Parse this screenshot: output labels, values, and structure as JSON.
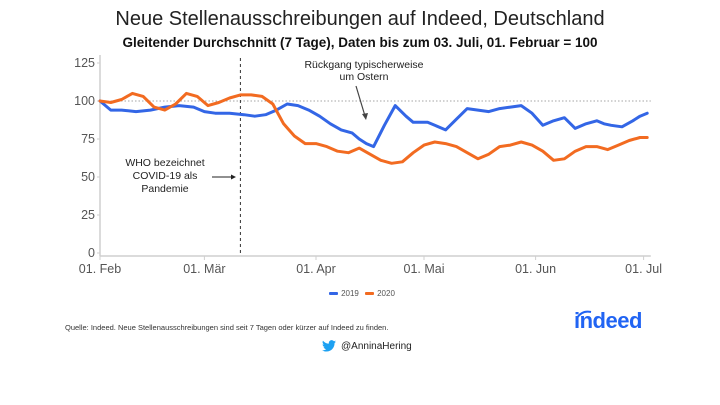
{
  "header": {
    "title": "Neue Stellenausschreibungen auf Indeed, Deutschland",
    "subtitle": "Gleitender Durchschnitt (7 Tage), Daten bis zum 03. Juli, 01. Februar = 100"
  },
  "footer": {
    "source": "Quelle: Indeed. Neue Stellenausschreibungen sind seit 7 Tagen oder kürzer auf Indeed zu finden.",
    "twitter_icon": "twitter-bird-icon",
    "twitter_handle": "@AnninaHering",
    "logo_text": "indeed"
  },
  "chart_data": {
    "type": "line",
    "title": "Neue Stellenausschreibungen auf Indeed, Deutschland",
    "subtitle": "Gleitender Durchschnitt (7 Tage), Daten bis zum 03. Juli, 01. Februar = 100",
    "xlabel": "",
    "ylabel": "",
    "x_unit": "days since 01. Feb",
    "xlim": [
      0,
      153
    ],
    "ylim": [
      0,
      125
    ],
    "yticks": [
      0,
      25,
      50,
      75,
      100,
      125
    ],
    "xticks": [
      {
        "day": 0,
        "label": "01. Feb"
      },
      {
        "day": 29,
        "label": "01. Mär"
      },
      {
        "day": 60,
        "label": "01. Apr"
      },
      {
        "day": 90,
        "label": "01. Mai"
      },
      {
        "day": 121,
        "label": "01. Jun"
      },
      {
        "day": 151,
        "label": "01. Jul"
      }
    ],
    "grid": false,
    "reference_line": {
      "y": 100,
      "style": "dotted"
    },
    "legend": {
      "placement": "bottom-center",
      "entries": [
        "2019",
        "2020"
      ]
    },
    "colors": {
      "2019": "#3366e6",
      "2020": "#f26b21"
    },
    "series": [
      {
        "name": "2019",
        "x": [
          0,
          3,
          6,
          10,
          14,
          18,
          22,
          26,
          29,
          32,
          36,
          40,
          43,
          46,
          49,
          52,
          55,
          58,
          61,
          64,
          67,
          70,
          72,
          74,
          76,
          79,
          82,
          85,
          87,
          89,
          91,
          93,
          96,
          99,
          102,
          105,
          108,
          111,
          114,
          117,
          120,
          123,
          126,
          129,
          132,
          135,
          138,
          140,
          142,
          145,
          148,
          150,
          152
        ],
        "values": [
          100,
          94,
          94,
          93,
          94,
          96,
          97,
          96,
          93,
          92,
          92,
          91,
          90,
          91,
          94,
          98,
          97,
          94,
          90,
          85,
          81,
          79,
          75,
          72,
          70,
          84,
          97,
          90,
          86,
          86,
          86,
          84,
          81,
          88,
          95,
          94,
          93,
          95,
          96,
          97,
          92,
          84,
          87,
          89,
          82,
          85,
          87,
          85,
          84,
          83,
          87,
          90,
          92
        ]
      },
      {
        "name": "2020",
        "x": [
          0,
          3,
          6,
          9,
          12,
          15,
          18,
          21,
          24,
          27,
          30,
          33,
          36,
          39,
          42,
          45,
          48,
          51,
          54,
          57,
          60,
          63,
          66,
          69,
          72,
          75,
          78,
          81,
          84,
          87,
          90,
          93,
          96,
          99,
          102,
          105,
          108,
          111,
          114,
          117,
          120,
          123,
          126,
          129,
          132,
          135,
          138,
          141,
          144,
          147,
          150,
          152
        ],
        "values": [
          100,
          99,
          101,
          105,
          103,
          96,
          94,
          98,
          105,
          103,
          97,
          99,
          102,
          104,
          104,
          103,
          98,
          85,
          77,
          72,
          72,
          70,
          67,
          66,
          69,
          65,
          61,
          59,
          60,
          66,
          71,
          73,
          72,
          70,
          66,
          62,
          65,
          70,
          71,
          73,
          71,
          67,
          61,
          62,
          67,
          70,
          70,
          68,
          71,
          74,
          76,
          76
        ]
      }
    ],
    "annotations": [
      {
        "text": [
          "WHO bezeichnet",
          "COVID-19 als",
          "Pandemie"
        ],
        "day": 39,
        "type": "vertical-dashed-line-with-arrow"
      },
      {
        "text": [
          "Rückgang typischerweise",
          "um Ostern"
        ],
        "day": 75,
        "type": "arrow"
      }
    ]
  }
}
